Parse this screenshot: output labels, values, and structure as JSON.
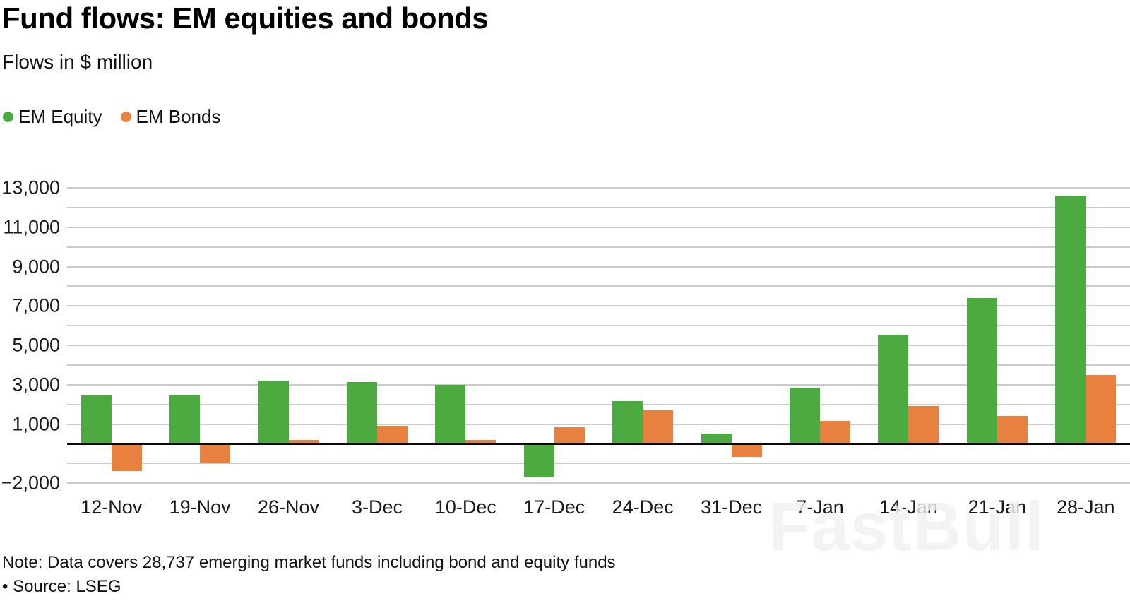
{
  "header": {
    "title": "Fund flows: EM equities and bonds",
    "subtitle": "Flows in $ million"
  },
  "chart_data": {
    "type": "bar",
    "title": "Fund flows: EM equities and bonds",
    "subtitle": "Flows in $ million",
    "unit": "$ million",
    "categories": [
      "12-Nov",
      "19-Nov",
      "26-Nov",
      "3-Dec",
      "10-Dec",
      "17-Dec",
      "24-Dec",
      "31-Dec",
      "7-Jan",
      "14-Jan",
      "21-Jan",
      "28-Jan"
    ],
    "series": [
      {
        "name": "EM Equity",
        "color": "#4caa40",
        "values": [
          2450,
          2500,
          3200,
          3150,
          3000,
          -1700,
          2150,
          500,
          2850,
          5550,
          7400,
          12600
        ]
      },
      {
        "name": "EM Bonds",
        "color": "#e8803f",
        "values": [
          -1400,
          -1000,
          200,
          900,
          200,
          850,
          1700,
          -650,
          1150,
          1900,
          1400,
          3500
        ]
      }
    ],
    "ylim": [
      -2000,
      13000
    ],
    "gridline_step": 1000,
    "grid": true,
    "legend_position": "top-left",
    "yticks": [
      {
        "value": 13000,
        "label": "13,000"
      },
      {
        "value": 11000,
        "label": "11,000"
      },
      {
        "value": 9000,
        "label": "9,000"
      },
      {
        "value": 7000,
        "label": "7,000"
      },
      {
        "value": 5000,
        "label": "5,000"
      },
      {
        "value": 3000,
        "label": "3,000"
      },
      {
        "value": 1000,
        "label": "1,000"
      },
      {
        "value": -2000,
        "label": "−2,000"
      }
    ],
    "xlabel": "",
    "ylabel": ""
  },
  "footer": {
    "note": "Note: Data covers 28,737 emerging market funds including bond and equity funds",
    "source": "• Source: LSEG"
  },
  "watermark": "FastBull"
}
